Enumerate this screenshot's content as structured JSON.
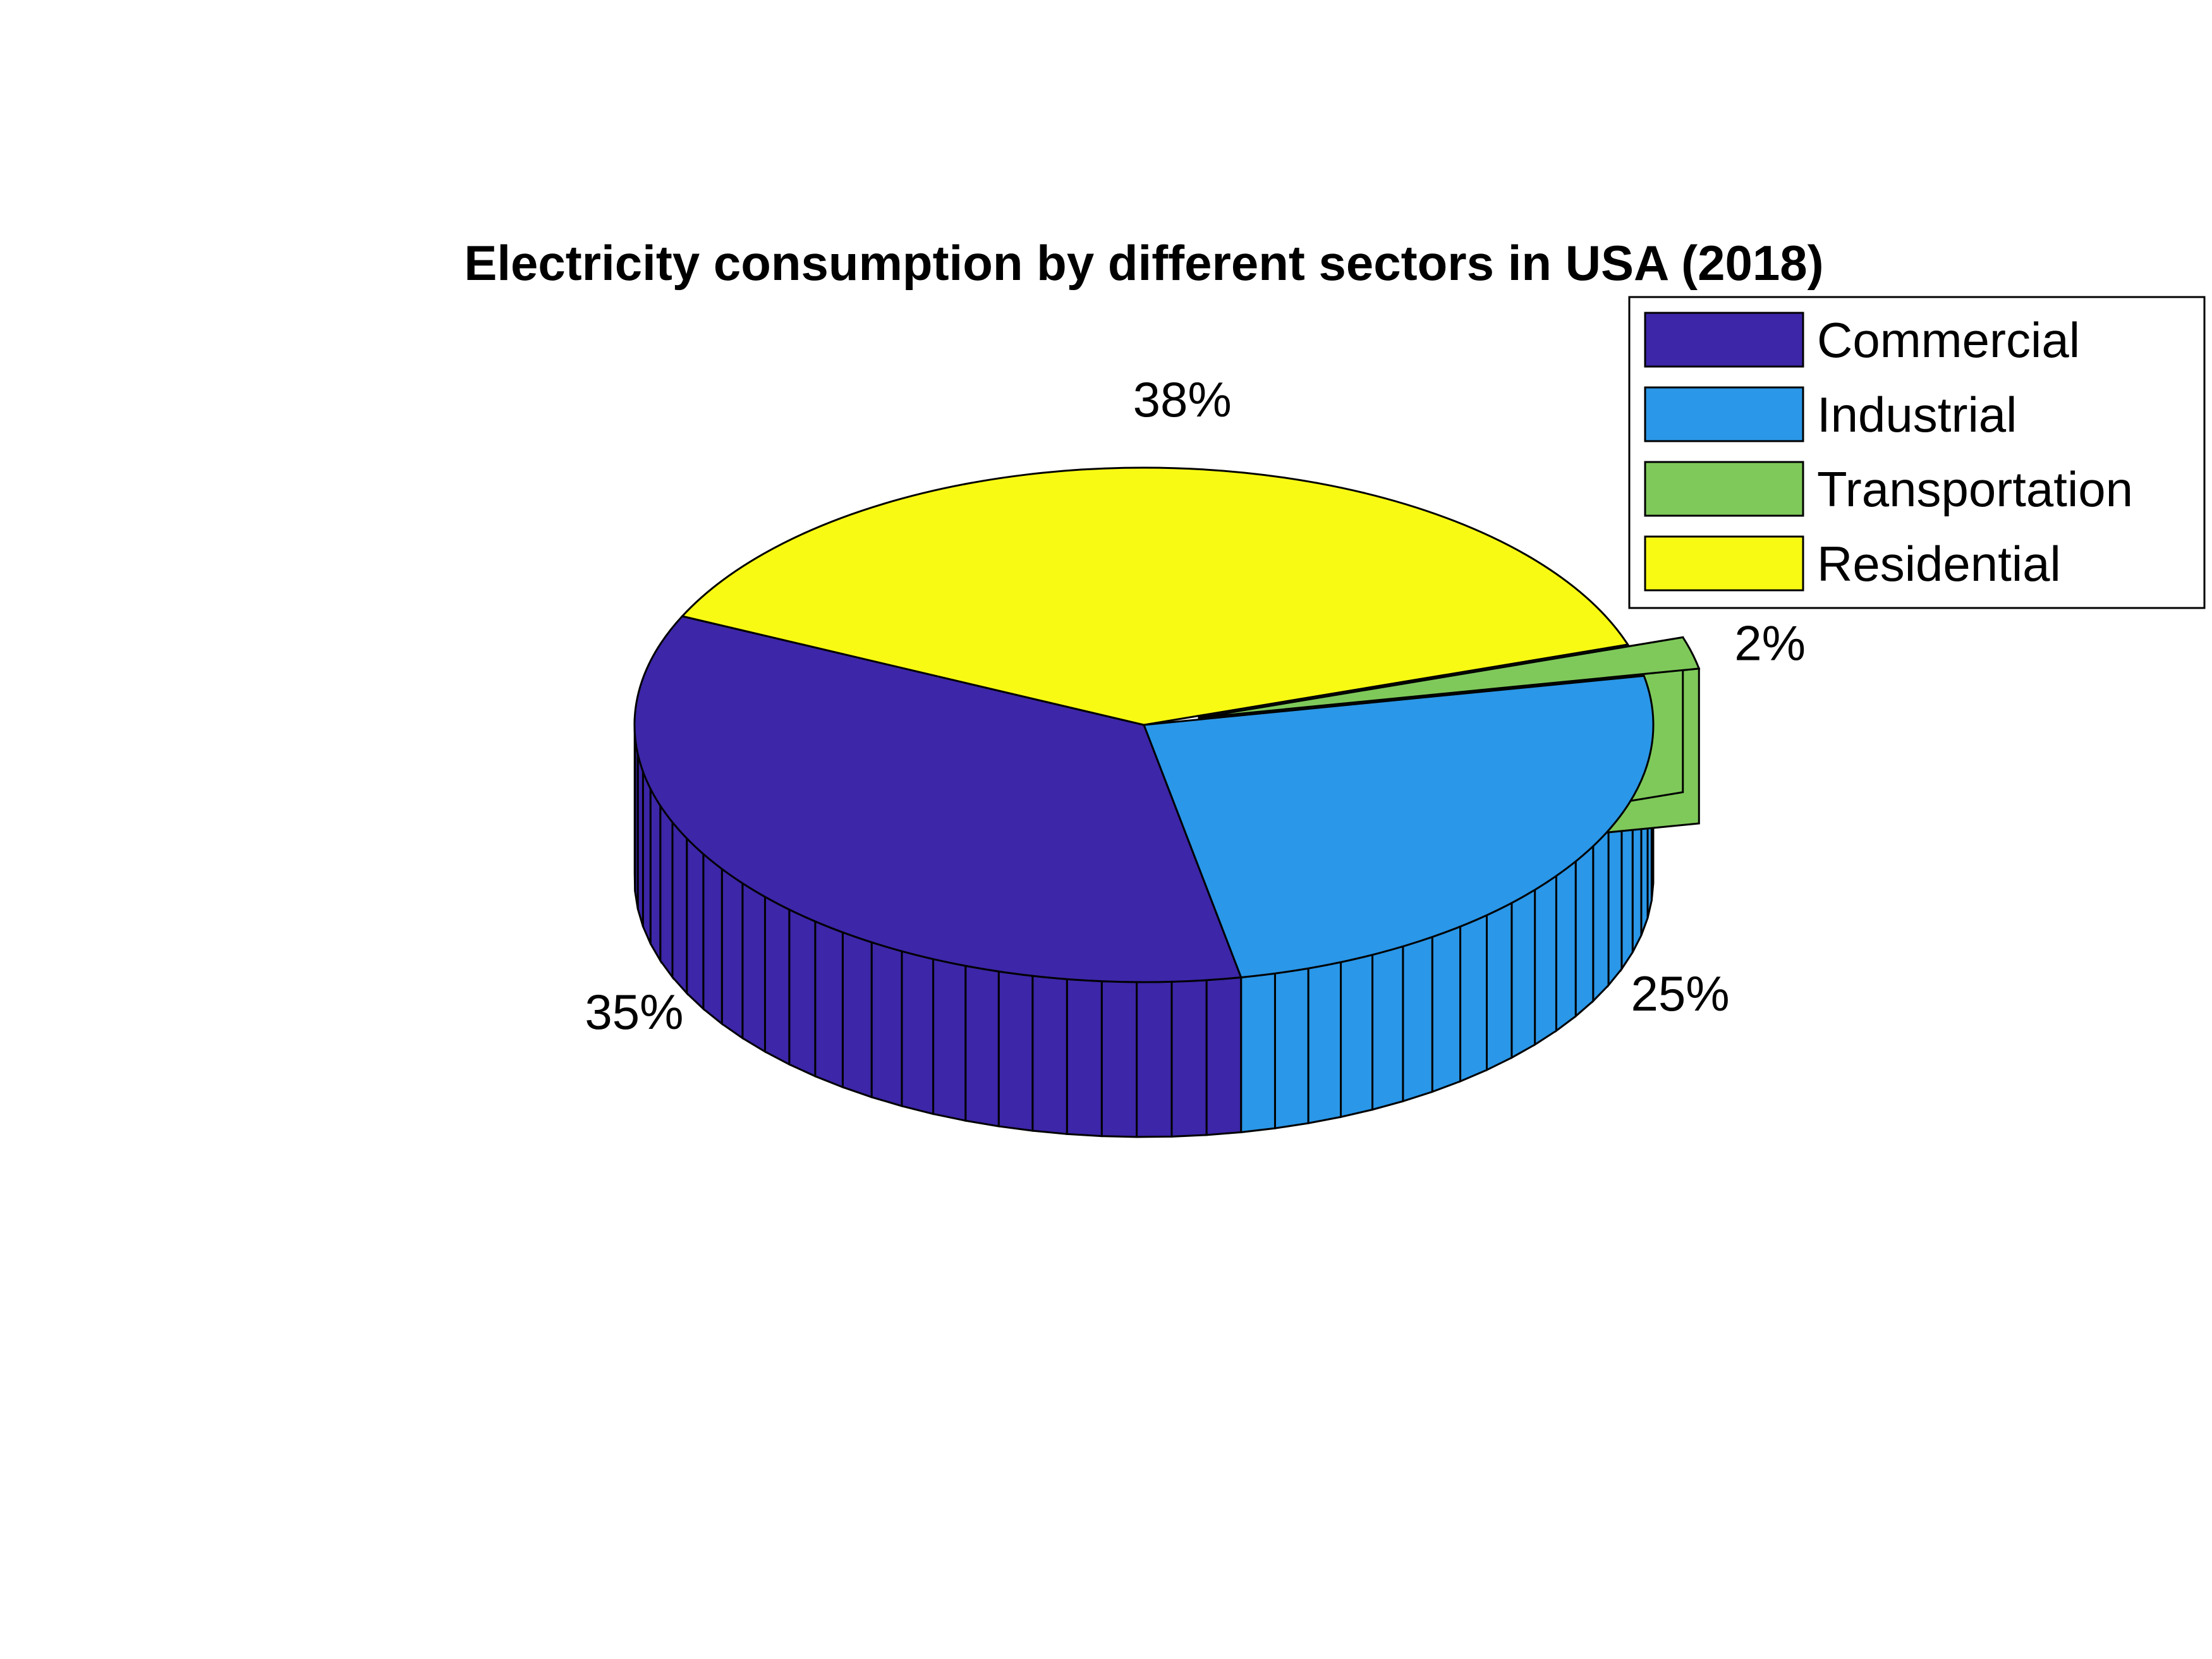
{
  "chart_data": {
    "type": "pie",
    "title": "Electricity consumption by different sectors in USA (2018)",
    "slices": [
      {
        "name": "Commercial",
        "percent": 35,
        "label": "35%",
        "color": "#3d26a8",
        "exploded": false
      },
      {
        "name": "Industrial",
        "percent": 25,
        "label": "25%",
        "color": "#2a97e8",
        "exploded": false
      },
      {
        "name": "Transportation",
        "percent": 2,
        "label": "2%",
        "color": "#7fc95a",
        "exploded": true
      },
      {
        "name": "Residential",
        "percent": 38,
        "label": "38%",
        "color": "#f8fa13",
        "exploded": false
      }
    ],
    "legend_position": "top-right",
    "style": "3d"
  }
}
